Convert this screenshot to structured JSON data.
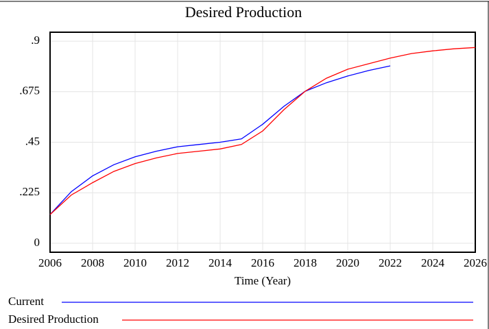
{
  "chart_data": {
    "type": "line",
    "title": "Desired Production",
    "x_label": "Time (Year)",
    "x": [
      2006,
      2007,
      2008,
      2009,
      2010,
      2011,
      2012,
      2013,
      2014,
      2015,
      2016,
      2017,
      2018,
      2019,
      2020,
      2021,
      2022,
      2023,
      2024,
      2025,
      2026
    ],
    "series": [
      {
        "name": "Current",
        "color": "#0000ff",
        "values": [
          0.128,
          0.23,
          0.3,
          0.35,
          0.385,
          0.41,
          0.43,
          0.44,
          0.45,
          0.465,
          0.53,
          0.61,
          0.677,
          0.715,
          0.745,
          0.77,
          0.79,
          null,
          null,
          null,
          null
        ]
      },
      {
        "name": "Desired Production",
        "color": "#ff0000",
        "values": [
          0.128,
          0.215,
          0.27,
          0.32,
          0.355,
          0.38,
          0.4,
          0.41,
          0.42,
          0.44,
          0.5,
          0.595,
          0.677,
          0.735,
          0.775,
          0.8,
          0.825,
          0.845,
          0.857,
          0.866,
          0.872
        ]
      }
    ],
    "xlim": [
      2006,
      2026
    ],
    "xticks": [
      2006,
      2008,
      2010,
      2012,
      2014,
      2016,
      2018,
      2020,
      2022,
      2024,
      2026
    ],
    "ylim": [
      -0.04,
      0.94
    ],
    "yticks": [
      0,
      {
        "value": 0.225,
        "label": ".225"
      },
      {
        "value": 0.45,
        "label": ".45"
      },
      {
        "value": 0.675,
        "label": ".675"
      },
      {
        "value": 0.9,
        "label": ".9"
      }
    ],
    "grid": true
  }
}
